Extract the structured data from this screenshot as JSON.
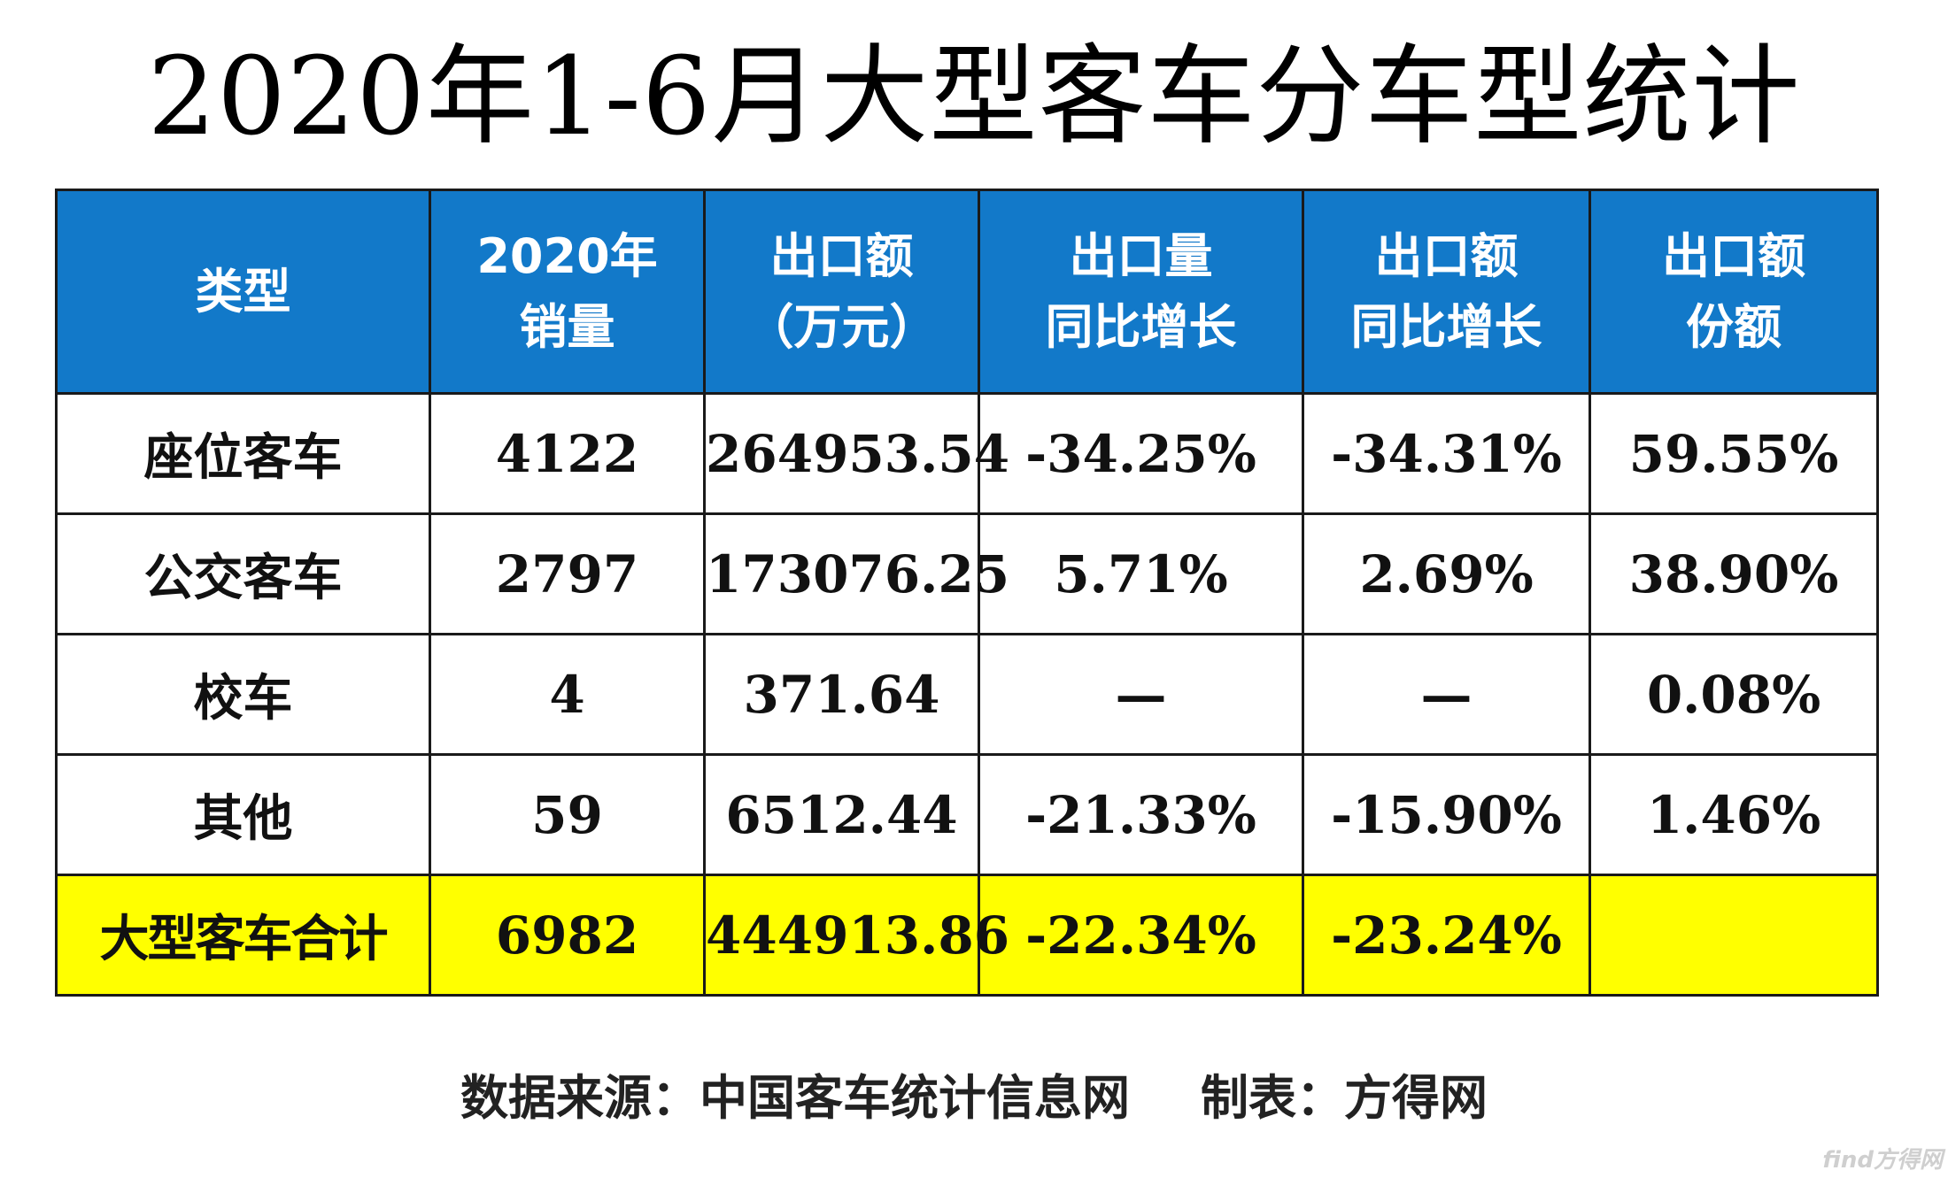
{
  "title": "2020年1-6月大型客车分车型统计",
  "colors": {
    "header_bg": "#1279c9",
    "total_row_bg": "#ffff00",
    "cell_bg": "#ffffff",
    "grid_line": "#1a1a1a"
  },
  "chart_data": {
    "type": "table",
    "title": "2020年1-6月大型客车分车型统计",
    "columns": [
      {
        "key": "type",
        "label_lines": [
          "类型"
        ]
      },
      {
        "key": "sales_2020",
        "label_lines": [
          "2020年",
          "销量"
        ]
      },
      {
        "key": "export_value",
        "label_lines": [
          "出口额",
          "（万元）"
        ]
      },
      {
        "key": "export_volume_yoy",
        "label_lines": [
          "出口量",
          "同比增长"
        ]
      },
      {
        "key": "export_value_yoy",
        "label_lines": [
          "出口额",
          "同比增长"
        ]
      },
      {
        "key": "export_value_share",
        "label_lines": [
          "出口额",
          "份额"
        ]
      }
    ],
    "rows": [
      {
        "type": "座位客车",
        "sales_2020": "4122",
        "export_value": "264953.54",
        "export_volume_yoy": "-34.25%",
        "export_value_yoy": "-34.31%",
        "export_value_share": "59.55%"
      },
      {
        "type": "公交客车",
        "sales_2020": "2797",
        "export_value": "173076.25",
        "export_volume_yoy": "5.71%",
        "export_value_yoy": "2.69%",
        "export_value_share": "38.90%"
      },
      {
        "type": "校车",
        "sales_2020": "4",
        "export_value": "371.64",
        "export_volume_yoy": "—",
        "export_value_yoy": "—",
        "export_value_share": "0.08%"
      },
      {
        "type": "其他",
        "sales_2020": "59",
        "export_value": "6512.44",
        "export_volume_yoy": "-21.33%",
        "export_value_yoy": "-15.90%",
        "export_value_share": "1.46%"
      }
    ],
    "total_row": {
      "type": "大型客车合计",
      "sales_2020": "6982",
      "export_value": "444913.86",
      "export_volume_yoy": "-22.34%",
      "export_value_yoy": "-23.24%",
      "export_value_share": ""
    }
  },
  "footer": {
    "source": "数据来源：中国客车统计信息网",
    "maker": "制表：方得网"
  },
  "watermark": {
    "text": "find方得网",
    "corner_logo": "find方得网"
  }
}
